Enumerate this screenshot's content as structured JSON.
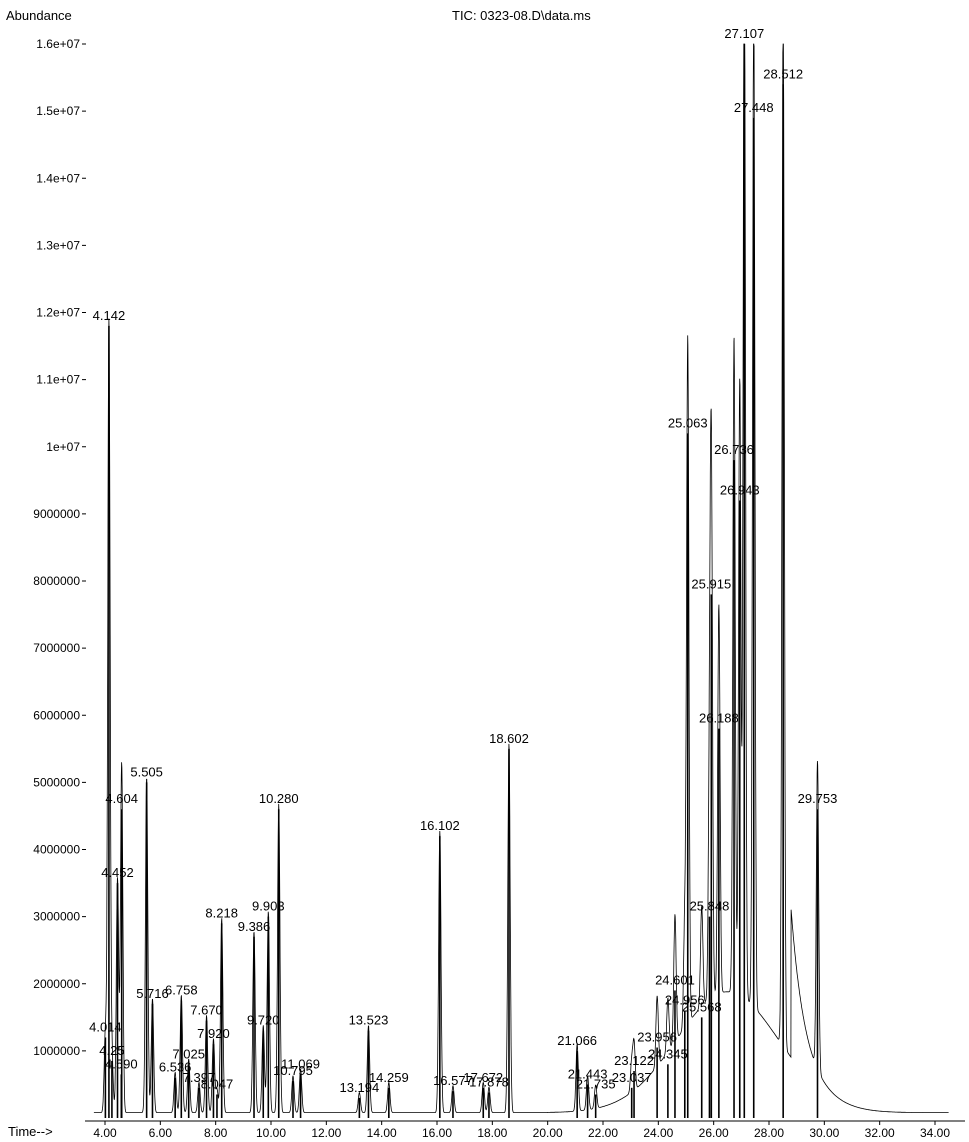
{
  "chart_data": {
    "type": "line",
    "title": "TIC: 0323-08.D\\data.ms",
    "ylabel": "Abundance",
    "xlabel": "Time-->",
    "xlim": [
      3.0,
      35.0
    ],
    "ylim": [
      0,
      16000000
    ],
    "x_ticks": [
      4,
      6,
      8,
      10,
      12,
      14,
      16,
      18,
      20,
      22,
      24,
      26,
      28,
      30,
      32,
      34
    ],
    "x_tick_labels": [
      "4.00",
      "6.00",
      "8.00",
      "10.00",
      "12.00",
      "14.00",
      "16.00",
      "18.00",
      "20.00",
      "22.00",
      "24.00",
      "26.00",
      "28.00",
      "30.00",
      "32.00",
      "34.00"
    ],
    "y_ticks": [
      1000000,
      2000000,
      3000000,
      4000000,
      5000000,
      6000000,
      7000000,
      8000000,
      9000000,
      10000000,
      11000000,
      12000000,
      13000000,
      14000000,
      15000000,
      16000000
    ],
    "y_tick_labels": [
      "1000000",
      "2000000",
      "3000000",
      "4000000",
      "5000000",
      "6000000",
      "7000000",
      "8000000",
      "9000000",
      "1e+07",
      "1.1e+07",
      "1.2e+07",
      "1.3e+07",
      "1.4e+07",
      "1.5e+07",
      "1.6e+07"
    ],
    "series": [
      {
        "peaks": [
          {
            "x": 4.014,
            "y": 1200000,
            "label": "4.014"
          },
          {
            "x": 4.142,
            "y": 11800000,
            "label": "4.142"
          },
          {
            "x": 4.25,
            "y": 850000,
            "label": "4.25"
          },
          {
            "x": 4.452,
            "y": 3500000,
            "label": "4.452"
          },
          {
            "x": 4.59,
            "y": 650000,
            "label": "4.590"
          },
          {
            "x": 4.604,
            "y": 4600000,
            "label": "4.604"
          },
          {
            "x": 5.505,
            "y": 5000000,
            "label": "5.505"
          },
          {
            "x": 5.716,
            "y": 1700000,
            "label": "5.716"
          },
          {
            "x": 6.536,
            "y": 600000,
            "label": "6.536"
          },
          {
            "x": 6.758,
            "y": 1750000,
            "label": "6.758"
          },
          {
            "x": 7.025,
            "y": 800000,
            "label": "7.025"
          },
          {
            "x": 7.397,
            "y": 450000,
            "label": "7.397"
          },
          {
            "x": 7.67,
            "y": 1450000,
            "label": "7.670"
          },
          {
            "x": 7.92,
            "y": 1100000,
            "label": "7.920"
          },
          {
            "x": 8.047,
            "y": 350000,
            "label": "8.047"
          },
          {
            "x": 8.218,
            "y": 2900000,
            "label": "8.218"
          },
          {
            "x": 9.386,
            "y": 2700000,
            "label": "9.386"
          },
          {
            "x": 9.72,
            "y": 1300000,
            "label": "9.720"
          },
          {
            "x": 9.903,
            "y": 3000000,
            "label": "9.903"
          },
          {
            "x": 10.28,
            "y": 4600000,
            "label": "10.280"
          },
          {
            "x": 10.795,
            "y": 550000,
            "label": "10.795"
          },
          {
            "x": 11.069,
            "y": 650000,
            "label": "11.069"
          },
          {
            "x": 13.194,
            "y": 300000,
            "label": "13.194"
          },
          {
            "x": 13.523,
            "y": 1300000,
            "label": "13.523"
          },
          {
            "x": 14.259,
            "y": 450000,
            "label": "14.259"
          },
          {
            "x": 16.102,
            "y": 4200000,
            "label": "16.102"
          },
          {
            "x": 16.577,
            "y": 400000,
            "label": "16.577"
          },
          {
            "x": 17.672,
            "y": 450000,
            "label": "17.672"
          },
          {
            "x": 17.878,
            "y": 380000,
            "label": "17.878"
          },
          {
            "x": 18.602,
            "y": 5500000,
            "label": "18.602"
          },
          {
            "x": 21.066,
            "y": 1000000,
            "label": "21.066"
          },
          {
            "x": 21.443,
            "y": 500000,
            "label": "21.443"
          },
          {
            "x": 21.735,
            "y": 350000,
            "label": "21.735"
          },
          {
            "x": 23.037,
            "y": 450000,
            "label": "23.037"
          },
          {
            "x": 23.122,
            "y": 700000,
            "label": "23.122"
          },
          {
            "x": 23.956,
            "y": 1050000,
            "label": "23.956"
          },
          {
            "x": 24.345,
            "y": 800000,
            "label": "24.345"
          },
          {
            "x": 24.601,
            "y": 1900000,
            "label": "24.601"
          },
          {
            "x": 24.956,
            "y": 1600000,
            "label": "24.956"
          },
          {
            "x": 25.063,
            "y": 10200000,
            "label": "25.063"
          },
          {
            "x": 25.568,
            "y": 1500000,
            "label": "25.568"
          },
          {
            "x": 25.848,
            "y": 3000000,
            "label": "25.848"
          },
          {
            "x": 25.915,
            "y": 7800000,
            "label": "25.915"
          },
          {
            "x": 26.188,
            "y": 5800000,
            "label": "26.188"
          },
          {
            "x": 26.736,
            "y": 9800000,
            "label": "26.736"
          },
          {
            "x": 26.943,
            "y": 9200000,
            "label": "26.943"
          },
          {
            "x": 27.107,
            "y": 16000000,
            "label": "27.107"
          },
          {
            "x": 27.448,
            "y": 14900000,
            "label": "27.448"
          },
          {
            "x": 28.512,
            "y": 15400000,
            "label": "28.512"
          },
          {
            "x": 29.753,
            "y": 4600000,
            "label": "29.753"
          }
        ]
      }
    ]
  }
}
